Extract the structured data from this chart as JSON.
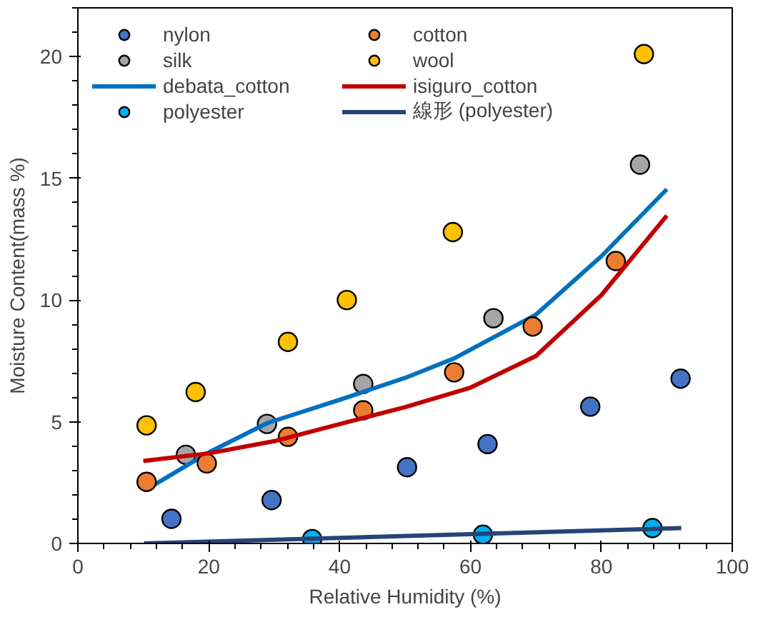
{
  "chart_data": {
    "type": "scatter",
    "xlabel": "Relative Humidity (%)",
    "ylabel": "Moisture Content(mass %)",
    "xlim": [
      0,
      100
    ],
    "xticks": [
      0,
      20,
      40,
      60,
      80,
      100
    ],
    "ylim": [
      0,
      22
    ],
    "yticks": [
      0,
      5,
      10,
      15,
      20
    ],
    "grid": false,
    "legend": "top left",
    "marker": "circle",
    "series": [
      {
        "name": "nylon",
        "color": "#4472c4",
        "x": [
          14.3,
          29.6,
          50.3,
          62.6,
          78.3,
          92.1
        ],
        "values": [
          1.01,
          1.78,
          3.13,
          4.08,
          5.62,
          6.77
        ]
      },
      {
        "name": "silk",
        "color": "#a5a5a5",
        "x": [
          16.5,
          28.9,
          43.6,
          63.5,
          85.9
        ],
        "values": [
          3.64,
          4.91,
          6.55,
          9.25,
          15.56
        ]
      },
      {
        "name": "debata_cotton",
        "type": "line",
        "marker": "none",
        "line_style": "solid",
        "color": "#0070c0",
        "x": [
          11,
          20,
          29,
          40,
          50,
          57.5,
          70,
          80,
          90
        ],
        "values": [
          2.3,
          3.74,
          4.95,
          5.9,
          6.8,
          7.6,
          9.4,
          11.8,
          14.55
        ]
      },
      {
        "name": "polyester",
        "color": "#00b0f0",
        "x": [
          35.8,
          61.9,
          87.8
        ],
        "values": [
          0.18,
          0.36,
          0.63
        ]
      },
      {
        "name": "cotton",
        "color": "#ed7d31",
        "x": [
          10.5,
          19.7,
          32.1,
          43.6,
          57.5,
          69.5,
          82.2
        ],
        "values": [
          2.53,
          3.29,
          4.38,
          5.47,
          7.03,
          8.91,
          11.6
        ]
      },
      {
        "name": "wool",
        "color": "#ffc000",
        "x": [
          10.5,
          18.0,
          32.1,
          41.1,
          57.3,
          86.5
        ],
        "values": [
          4.85,
          6.22,
          8.28,
          10.0,
          12.79,
          20.1
        ]
      },
      {
        "name": "isiguro_cotton",
        "type": "line",
        "marker": "none",
        "line_style": "solid",
        "color": "#c00000",
        "x": [
          10,
          20,
          30,
          40,
          50,
          60,
          70,
          80,
          90
        ],
        "values": [
          3.39,
          3.7,
          4.2,
          4.9,
          5.6,
          6.4,
          7.7,
          10.2,
          13.47
        ]
      },
      {
        "name": "線形 (polyester)",
        "type": "line",
        "marker": "none",
        "line_style": "solid",
        "color": "#264478",
        "x": [
          10.1,
          92.2
        ],
        "values": [
          0.0,
          0.63
        ]
      }
    ]
  }
}
